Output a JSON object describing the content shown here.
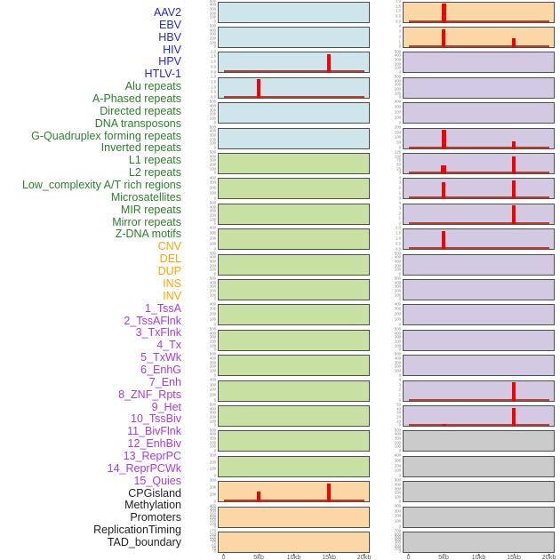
{
  "chart_data": {
    "type": "area",
    "description": "Multi-track genomic feature density profiles over a 0-20kb window; 44 tracks in two panel columns with red density spikes",
    "x_axis": {
      "tick_labels": [
        "0",
        "5kb",
        "10kb",
        "15kb",
        "20kb"
      ],
      "tick_positions_kb": [
        0,
        5,
        10,
        15,
        20
      ],
      "range_kb": [
        0,
        20
      ],
      "grid": "off"
    },
    "palette": {
      "label_virus": "#2626d6",
      "label_repeat": "#2e7d2e",
      "label_sv": "#ffa500",
      "label_chromatin": "#a63be0",
      "label_other": "#1f1f1f",
      "fill_blue": "#cee5ec",
      "fill_green": "#c8e0a2",
      "fill_orange": "#fbd7a6",
      "fill_purple": "#d4c9e3",
      "fill_gray": "#cbcbcb",
      "panel_border": "#4f4f4f",
      "spike_red": "#f80000",
      "baseline_red": "#c23a28",
      "ytick_text": "#7f7f7f",
      "xaxis_text": "#5a5a5a",
      "xtick_mark": "#555555"
    },
    "legend_position": "none",
    "tracks": [
      {
        "label": "AAV2",
        "group": "virus",
        "fill": "fill_blue",
        "yticks": [
          "500",
          "400",
          "300",
          "200",
          "100",
          "0"
        ],
        "baseline": false,
        "peaks": []
      },
      {
        "label": "EBV",
        "group": "virus",
        "fill": "fill_blue",
        "yticks": [
          "500",
          "400",
          "300",
          "200",
          "100",
          "0"
        ],
        "baseline": false,
        "peaks": []
      },
      {
        "label": "HBV",
        "group": "virus",
        "fill": "fill_blue",
        "yticks": [
          "2.0",
          "1.5",
          "1.0",
          "0.5",
          "0.0"
        ],
        "baseline": true,
        "peaks": [
          {
            "kb": 15,
            "frac": 1.0,
            "w": 3.5
          }
        ]
      },
      {
        "label": "HIV",
        "group": "virus",
        "fill": "fill_blue",
        "yticks": [
          "2.0",
          "1.5",
          "1.0",
          "0.5",
          "0.0"
        ],
        "baseline": true,
        "peaks": [
          {
            "kb": 5,
            "frac": 1.0,
            "w": 3.5
          }
        ]
      },
      {
        "label": "HPV",
        "group": "virus",
        "fill": "fill_blue",
        "yticks": [
          "500",
          "400",
          "300",
          "200",
          "100",
          "0"
        ],
        "baseline": false,
        "peaks": []
      },
      {
        "label": "HTLV-1",
        "group": "virus",
        "fill": "fill_blue",
        "yticks": [
          "500",
          "400",
          "300",
          "200",
          "100",
          "0"
        ],
        "baseline": false,
        "peaks": []
      },
      {
        "label": "Alu repeats",
        "group": "repeat",
        "fill": "fill_green",
        "yticks": [
          "500",
          "400",
          "300",
          "200",
          "100",
          "0"
        ],
        "baseline": false,
        "peaks": []
      },
      {
        "label": "A-Phased repeats",
        "group": "repeat",
        "fill": "fill_green",
        "yticks": [
          "400",
          "300",
          "200",
          "100",
          "0"
        ],
        "baseline": false,
        "peaks": []
      },
      {
        "label": "Directed repeats",
        "group": "repeat",
        "fill": "fill_green",
        "yticks": [
          "500",
          "400",
          "300",
          "200",
          "100",
          "0"
        ],
        "baseline": false,
        "peaks": []
      },
      {
        "label": "DNA transposons",
        "group": "repeat",
        "fill": "fill_green",
        "yticks": [
          "400",
          "300",
          "200",
          "100",
          "0"
        ],
        "baseline": false,
        "peaks": []
      },
      {
        "label": "G-Quadruplex forming repeats",
        "group": "repeat",
        "fill": "fill_green",
        "yticks": [
          "500",
          "400",
          "300",
          "200",
          "100",
          "0"
        ],
        "baseline": false,
        "peaks": []
      },
      {
        "label": "Inverted repeats",
        "group": "repeat",
        "fill": "fill_green",
        "yticks": [
          "500",
          "400",
          "300",
          "200",
          "100",
          "0"
        ],
        "baseline": false,
        "peaks": []
      },
      {
        "label": "L1 repeats",
        "group": "repeat",
        "fill": "fill_green",
        "yticks": [
          "400",
          "300",
          "200",
          "100",
          "0"
        ],
        "baseline": false,
        "peaks": []
      },
      {
        "label": "L2 repeats",
        "group": "repeat",
        "fill": "fill_green",
        "yticks": [
          "500",
          "400",
          "300",
          "200",
          "100",
          "0"
        ],
        "baseline": false,
        "peaks": []
      },
      {
        "label": "Low_complexity A/T rich regions",
        "group": "repeat",
        "fill": "fill_green",
        "yticks": [
          "500",
          "400",
          "300",
          "200",
          "100",
          "0"
        ],
        "baseline": false,
        "peaks": []
      },
      {
        "label": "Microsatellites",
        "group": "repeat",
        "fill": "fill_green",
        "yticks": [
          "400",
          "300",
          "200",
          "100",
          "0"
        ],
        "baseline": false,
        "peaks": []
      },
      {
        "label": "MIR repeats",
        "group": "repeat",
        "fill": "fill_green",
        "yticks": [
          "500",
          "400",
          "300",
          "200",
          "100",
          "0"
        ],
        "baseline": false,
        "peaks": []
      },
      {
        "label": "Mirror repeats",
        "group": "repeat",
        "fill": "fill_green",
        "yticks": [
          "500",
          "400",
          "300",
          "200",
          "100",
          "0"
        ],
        "baseline": false,
        "peaks": []
      },
      {
        "label": "Z-DNA motifs",
        "group": "repeat",
        "fill": "fill_green",
        "yticks": [
          "300",
          "200",
          "100",
          "0"
        ],
        "baseline": false,
        "peaks": []
      },
      {
        "label": "CNV",
        "group": "sv",
        "fill": "fill_orange",
        "yticks": [
          "300",
          "200",
          "100",
          "0"
        ],
        "baseline": true,
        "peaks": [
          {
            "kb": 5,
            "frac": 0.55,
            "w": 4
          },
          {
            "kb": 15,
            "frac": 1.0,
            "w": 3.5
          }
        ]
      },
      {
        "label": "DEL",
        "group": "sv",
        "fill": "fill_orange",
        "yticks": [
          "400",
          "350",
          "300",
          "250",
          "200",
          "150",
          "100",
          "0"
        ],
        "baseline": false,
        "peaks": []
      },
      {
        "label": "DUP",
        "group": "sv",
        "fill": "fill_orange",
        "yticks": [
          "175",
          "150",
          "125",
          "100",
          "75",
          "50",
          "25",
          "0"
        ],
        "baseline": false,
        "peaks": []
      },
      {
        "label": "INS",
        "group": "sv",
        "fill": "fill_orange",
        "yticks": [
          "2.0",
          "1.5",
          "1.0",
          "0.5",
          "0.0"
        ],
        "baseline": true,
        "peaks": [
          {
            "kb": 5,
            "frac": 1.0,
            "w": 5
          }
        ]
      },
      {
        "label": "INV",
        "group": "sv",
        "fill": "fill_orange",
        "yticks": [
          "4",
          "3",
          "2",
          "1",
          "0"
        ],
        "baseline": true,
        "peaks": [
          {
            "kb": 5,
            "frac": 1.0,
            "w": 4
          },
          {
            "kb": 15,
            "frac": 0.5,
            "w": 3.5
          }
        ]
      },
      {
        "label": "1_TssA",
        "group": "chromatin",
        "fill": "fill_purple",
        "yticks": [
          "500",
          "400",
          "300",
          "200",
          "100",
          "0"
        ],
        "baseline": false,
        "peaks": []
      },
      {
        "label": "2_TssAFlnk",
        "group": "chromatin",
        "fill": "fill_purple",
        "yticks": [
          "500",
          "400",
          "300",
          "200",
          "100",
          "0"
        ],
        "baseline": false,
        "peaks": []
      },
      {
        "label": "3_TxFlnk",
        "group": "chromatin",
        "fill": "fill_purple",
        "yticks": [
          "400",
          "300",
          "200",
          "100",
          "0"
        ],
        "baseline": false,
        "peaks": []
      },
      {
        "label": "4_Tx",
        "group": "chromatin",
        "fill": "fill_purple",
        "yticks": [
          "200",
          "150",
          "100",
          "50",
          "0"
        ],
        "baseline": true,
        "peaks": [
          {
            "kb": 5,
            "frac": 1.0,
            "w": 5
          },
          {
            "kb": 15,
            "frac": 0.38,
            "w": 3.5
          }
        ]
      },
      {
        "label": "5_TxWk",
        "group": "chromatin",
        "fill": "fill_purple",
        "yticks": [
          "125",
          "100",
          "75",
          "50",
          "25",
          "0"
        ],
        "baseline": true,
        "peaks": [
          {
            "kb": 5,
            "frac": 0.45,
            "w": 6
          },
          {
            "kb": 15,
            "frac": 0.95,
            "w": 3.5
          }
        ]
      },
      {
        "label": "6_EnhG",
        "group": "chromatin",
        "fill": "fill_purple",
        "yticks": [
          "4",
          "3",
          "2",
          "1",
          "0"
        ],
        "baseline": true,
        "peaks": [
          {
            "kb": 5,
            "frac": 0.92,
            "w": 3.5
          },
          {
            "kb": 15,
            "frac": 1.0,
            "w": 3.5
          }
        ]
      },
      {
        "label": "7_Enh",
        "group": "chromatin",
        "fill": "fill_purple",
        "yticks": [
          "4",
          "3",
          "2",
          "1",
          "0"
        ],
        "baseline": true,
        "peaks": [
          {
            "kb": 15,
            "frac": 1.0,
            "w": 4
          }
        ]
      },
      {
        "label": "8_ZNF_Rpts",
        "group": "chromatin",
        "fill": "fill_purple",
        "yticks": [
          "2.0",
          "1.5",
          "1.0",
          "0.5",
          "0.0"
        ],
        "baseline": true,
        "peaks": [
          {
            "kb": 5,
            "frac": 1.0,
            "w": 4.5
          }
        ]
      },
      {
        "label": "9_Het",
        "group": "chromatin",
        "fill": "fill_purple",
        "yticks": [
          "500",
          "400",
          "300",
          "200",
          "100",
          "0"
        ],
        "baseline": false,
        "peaks": []
      },
      {
        "label": "10_TssBiv",
        "group": "chromatin",
        "fill": "fill_purple",
        "yticks": [
          "500",
          "400",
          "300",
          "200",
          "100",
          "0"
        ],
        "baseline": false,
        "peaks": []
      },
      {
        "label": "11_BivFlnk",
        "group": "chromatin",
        "fill": "fill_purple",
        "yticks": [
          "400",
          "300",
          "200",
          "100",
          "0"
        ],
        "baseline": false,
        "peaks": []
      },
      {
        "label": "12_EnhBiv",
        "group": "chromatin",
        "fill": "fill_purple",
        "yticks": [
          "500",
          "400",
          "300",
          "200",
          "100",
          "0"
        ],
        "baseline": false,
        "peaks": []
      },
      {
        "label": "13_ReprPC",
        "group": "chromatin",
        "fill": "fill_purple",
        "yticks": [
          "500",
          "400",
          "300",
          "200",
          "100",
          "0"
        ],
        "baseline": false,
        "peaks": []
      },
      {
        "label": "14_ReprPCWk",
        "group": "chromatin",
        "fill": "fill_purple",
        "yticks": [
          "4",
          "3",
          "2",
          "1",
          "0"
        ],
        "baseline": true,
        "peaks": [
          {
            "kb": 15,
            "frac": 1.0,
            "w": 4.5
          }
        ]
      },
      {
        "label": "15_Quies",
        "group": "chromatin",
        "fill": "fill_purple",
        "yticks": [
          "50",
          "40",
          "30",
          "20",
          "10",
          "0"
        ],
        "baseline": true,
        "peaks": [
          {
            "kb": 5,
            "frac": 0.1,
            "w": 5
          },
          {
            "kb": 15,
            "frac": 1.0,
            "w": 3.5
          }
        ]
      },
      {
        "label": "CPGisland",
        "group": "other",
        "fill": "fill_gray",
        "yticks": [
          "500",
          "400",
          "300",
          "200",
          "100",
          "0"
        ],
        "baseline": false,
        "peaks": []
      },
      {
        "label": "Methylation",
        "group": "other",
        "fill": "fill_gray",
        "yticks": [
          "400",
          "300",
          "200",
          "100",
          "0"
        ],
        "baseline": false,
        "peaks": []
      },
      {
        "label": "Promoters",
        "group": "other",
        "fill": "fill_gray",
        "yticks": [
          "500",
          "400",
          "300",
          "200",
          "100",
          "0"
        ],
        "baseline": false,
        "peaks": []
      },
      {
        "label": "ReplicationTiming",
        "group": "other",
        "fill": "fill_gray",
        "yticks": [
          "400",
          "300",
          "200",
          "100",
          "0"
        ],
        "baseline": false,
        "peaks": []
      },
      {
        "label": "TAD_boundary",
        "group": "other",
        "fill": "fill_gray",
        "yticks": [
          "700",
          "600",
          "500",
          "400",
          "300",
          "200",
          "100",
          "0"
        ],
        "baseline": false,
        "peaks": []
      }
    ]
  }
}
